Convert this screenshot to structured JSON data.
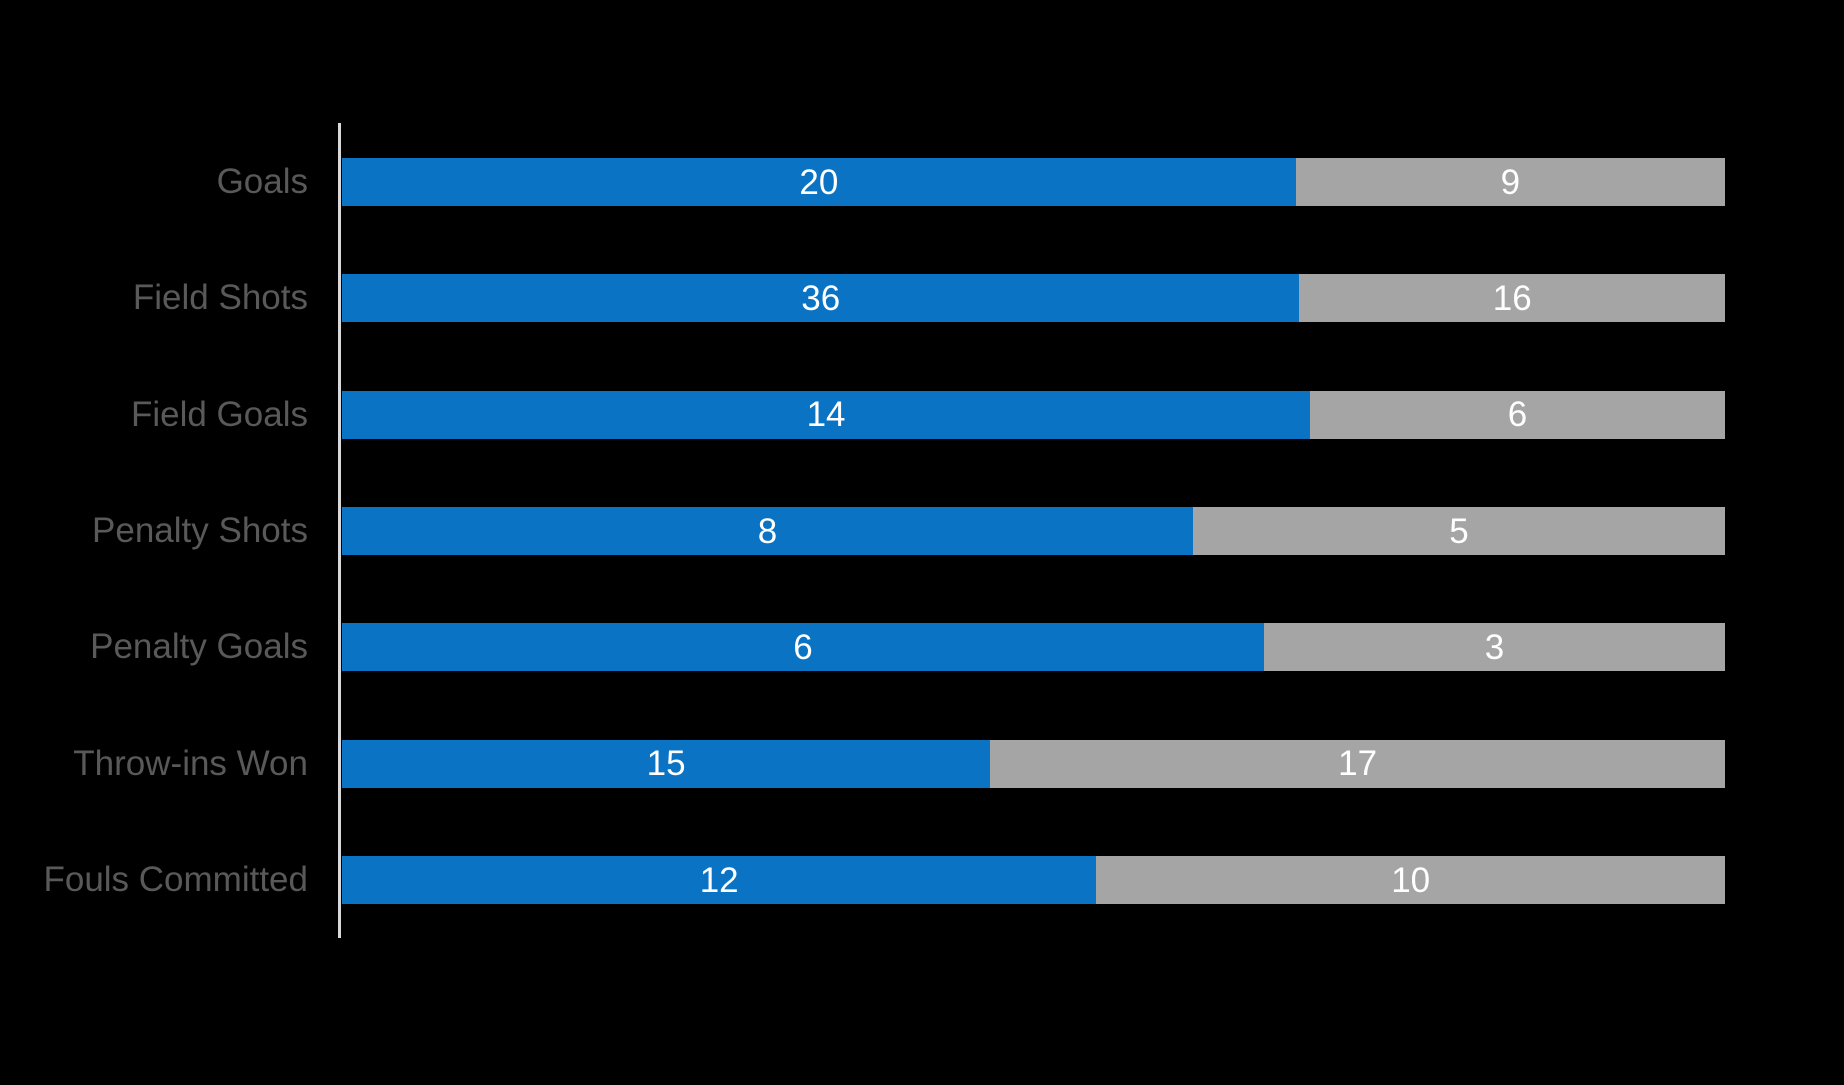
{
  "background_color": "#000000",
  "chart_data": {
    "type": "bar",
    "orientation": "horizontal",
    "stacking": "percent",
    "categories": [
      "Goals",
      "Field Shots",
      "Field Goals",
      "Penalty Shots",
      "Penalty Goals",
      "Throw-ins Won",
      "Fouls Committed"
    ],
    "series": [
      {
        "name": "blue",
        "color": "#0B73C4",
        "values": [
          20,
          36,
          14,
          8,
          6,
          15,
          12
        ]
      },
      {
        "name": "gray",
        "color": "#A5A5A5",
        "values": [
          9,
          16,
          6,
          5,
          3,
          17,
          10
        ]
      }
    ],
    "value_labels": {
      "visible": true,
      "color": "#FFFFFF"
    },
    "category_axis": {
      "label_color": "#595959",
      "line_color": "#D9D9D9"
    },
    "grid": false,
    "legend": {
      "position": "bottom",
      "swatch_colors": [
        "#0B73C4",
        "#A5A5A5"
      ],
      "labels_visible": false
    }
  }
}
